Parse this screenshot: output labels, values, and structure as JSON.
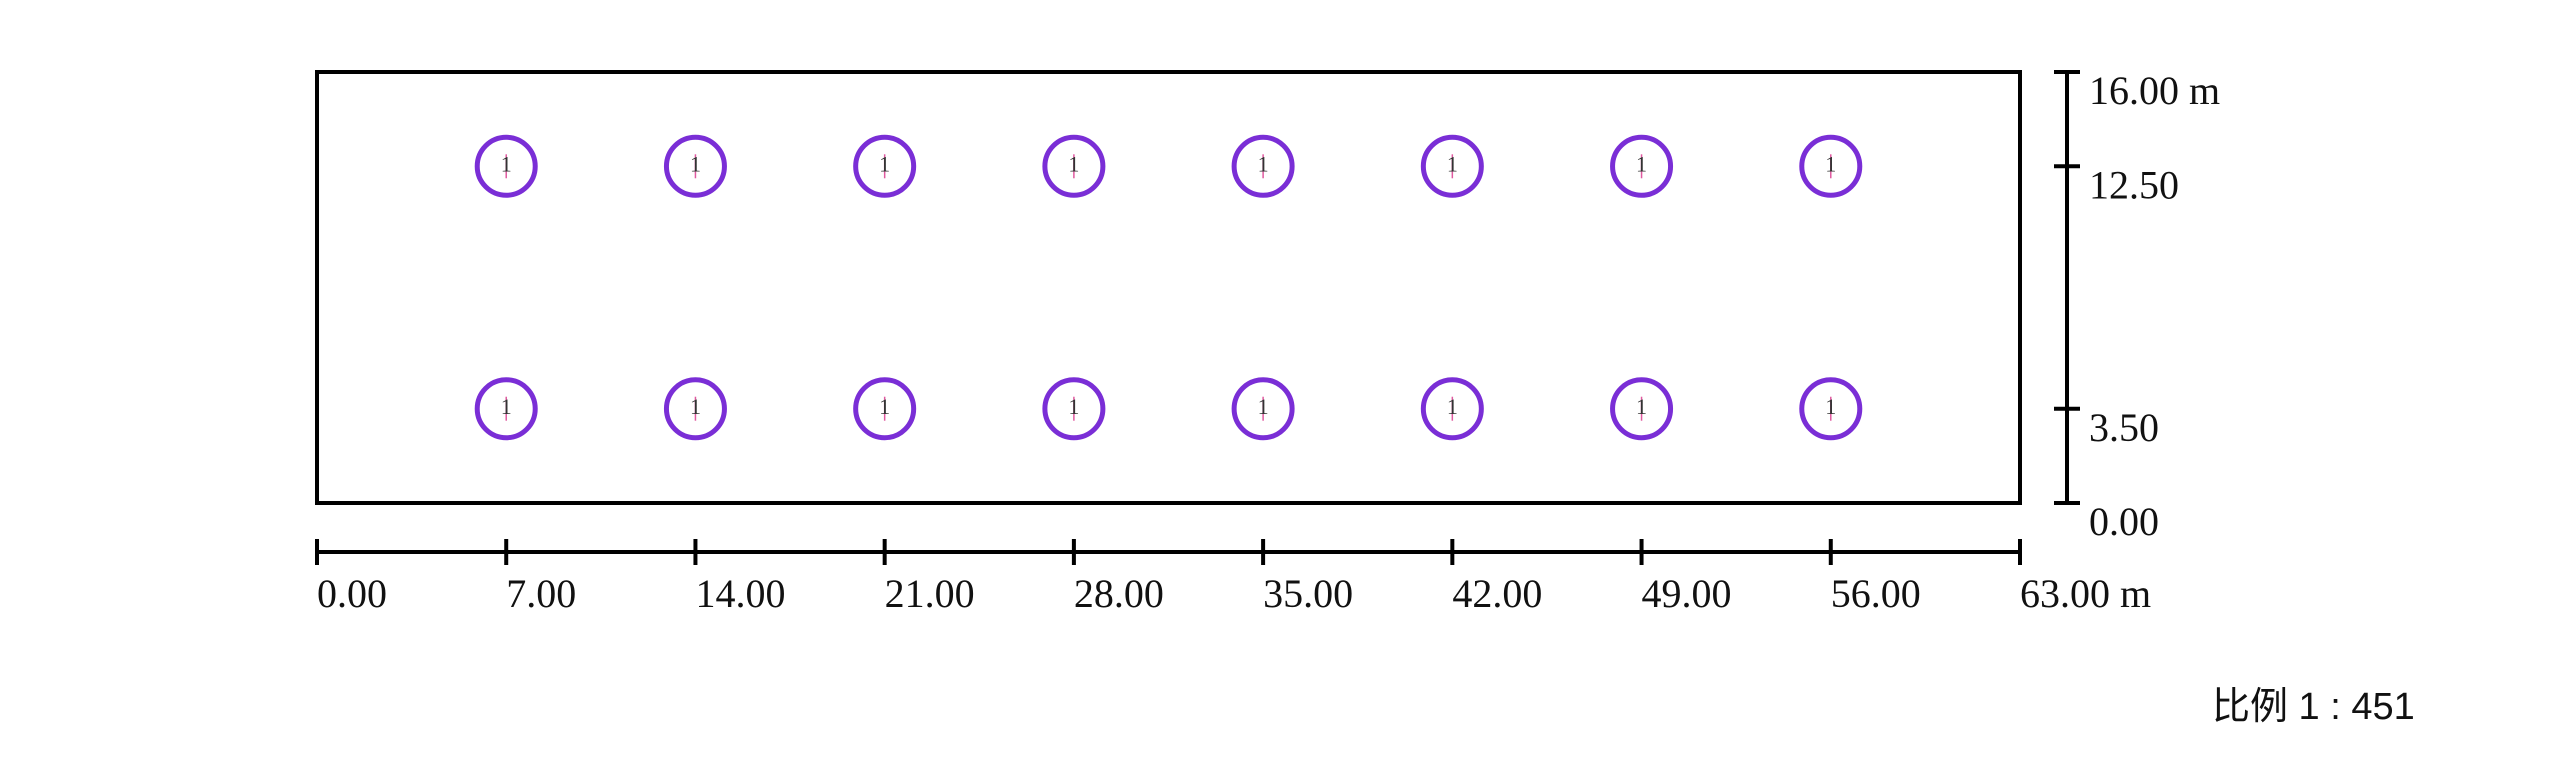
{
  "chart_data": {
    "type": "scatter",
    "x": [
      7,
      14,
      21,
      28,
      35,
      42,
      49,
      56,
      7,
      14,
      21,
      28,
      35,
      42,
      49,
      56
    ],
    "values": [
      12.5,
      12.5,
      12.5,
      12.5,
      12.5,
      12.5,
      12.5,
      12.5,
      3.5,
      3.5,
      3.5,
      3.5,
      3.5,
      3.5,
      3.5,
      3.5
    ],
    "point_label": "1",
    "color": "#7a2ed6",
    "xlim": [
      0,
      63
    ],
    "ylim": [
      0,
      16
    ],
    "xticks": [
      {
        "value": 0,
        "label": "0.00"
      },
      {
        "value": 7,
        "label": "7.00"
      },
      {
        "value": 14,
        "label": "14.00"
      },
      {
        "value": 21,
        "label": "21.00"
      },
      {
        "value": 28,
        "label": "28.00"
      },
      {
        "value": 35,
        "label": "35.00"
      },
      {
        "value": 42,
        "label": "42.00"
      },
      {
        "value": 49,
        "label": "49.00"
      },
      {
        "value": 56,
        "label": "56.00"
      },
      {
        "value": 63,
        "label": "63.00 m"
      }
    ],
    "yticks": [
      {
        "value": 0,
        "label": "0.00"
      },
      {
        "value": 3.5,
        "label": "3.50"
      },
      {
        "value": 12.5,
        "label": "12.50"
      },
      {
        "value": 16,
        "label": "16.00 m"
      }
    ],
    "annotation": "比例 1 : 451"
  }
}
